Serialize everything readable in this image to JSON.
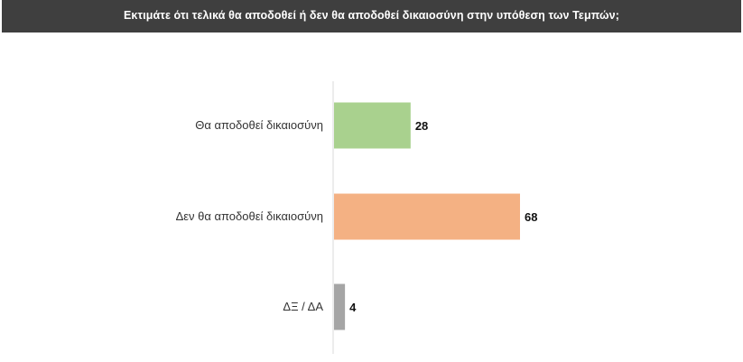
{
  "chart_data": {
    "type": "bar",
    "orientation": "horizontal",
    "title": "Εκτιμάτε ότι τελικά θα αποδοθεί ή δεν θα αποδοθεί δικαιοσύνη στην υπόθεση των Τεμπών;",
    "categories": [
      "Θα αποδοθεί δικαιοσύνη",
      "Δεν θα αποδοθεί δικαιοσύνη",
      "ΔΞ / ΔΑ"
    ],
    "values": [
      28,
      68,
      4
    ],
    "value_labels": [
      "28",
      "68",
      "4"
    ],
    "colors": [
      "#a9d18e",
      "#f4b183",
      "#a5a5a5"
    ],
    "xlim": [
      0,
      100
    ],
    "xlabel": "",
    "ylabel": "",
    "grid": false,
    "legend": "none"
  }
}
